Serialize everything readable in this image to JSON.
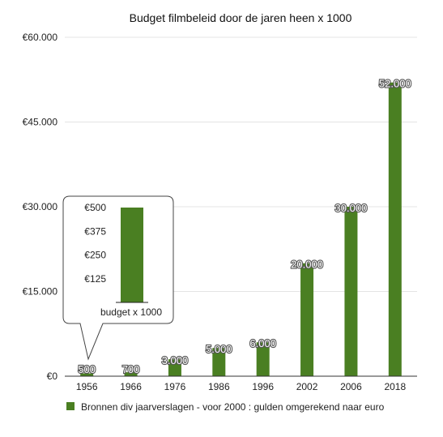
{
  "chart_data": {
    "type": "bar",
    "title": "Budget filmbeleid door de jaren heen x 1000",
    "categories": [
      "1956",
      "1966",
      "1976",
      "1986",
      "1996",
      "2002",
      "2006",
      "2018"
    ],
    "values": [
      500,
      700,
      3000,
      5000,
      6000,
      20000,
      30000,
      52000
    ],
    "data_labels": [
      "500",
      "700",
      "3.000",
      "5.000",
      "6.000",
      "20.000",
      "30.000",
      "52.000"
    ],
    "ylim": [
      0,
      60000
    ],
    "y_ticks": [
      0,
      15000,
      30000,
      45000,
      60000
    ],
    "y_tick_labels": [
      "€0",
      "€15.000",
      "€30.000",
      "€45.000",
      "€60.000"
    ],
    "grid": true,
    "bar_color": "#4a7f22",
    "legend": {
      "position": "bottom",
      "entries": [
        "Bronnen div jaarverslagen - voor 2000 : gulden omgerekend naar euro"
      ]
    },
    "inset": {
      "xlabel": "budget x 1000",
      "value": 500,
      "ylim": [
        0,
        500
      ],
      "y_ticks": [
        125,
        250,
        375,
        500
      ],
      "y_tick_labels": [
        "€125",
        "€250",
        "€375",
        "€500"
      ]
    }
  }
}
